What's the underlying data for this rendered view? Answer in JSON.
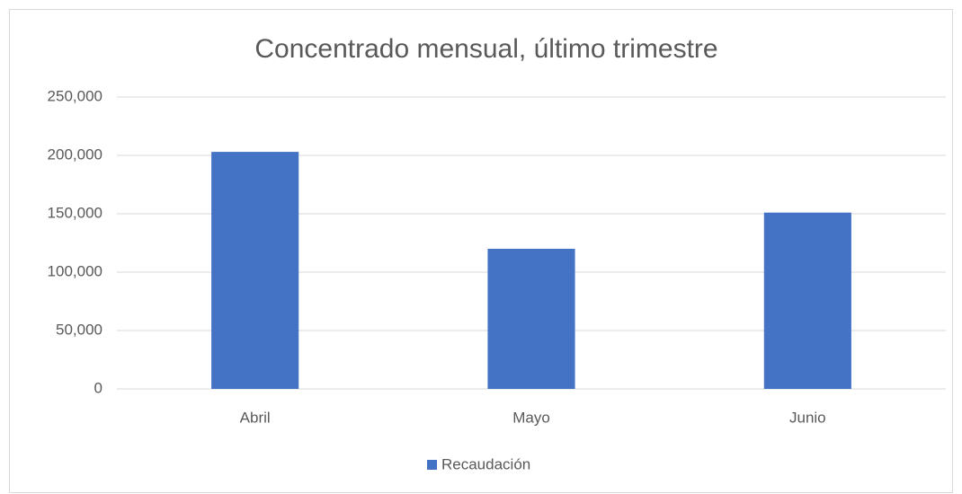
{
  "chart_data": {
    "type": "bar",
    "title": "Concentrado mensual, último trimestre",
    "categories": [
      "Abril",
      "Mayo",
      "Junio"
    ],
    "series": [
      {
        "name": "Recaudación",
        "color": "#4472c4",
        "values": [
          203000,
          120000,
          151000
        ]
      }
    ],
    "ylim": [
      0,
      250000
    ],
    "yticks": [
      0,
      {
        "value": 50000,
        "label": "50,000"
      },
      {
        "value": 100000,
        "label": "100,000"
      },
      {
        "value": 150000,
        "label": "150,000"
      },
      {
        "value": 200000,
        "label": "200,000"
      },
      {
        "value": 250000,
        "label": "250,000"
      }
    ],
    "grid": true,
    "legend": "bottom"
  }
}
